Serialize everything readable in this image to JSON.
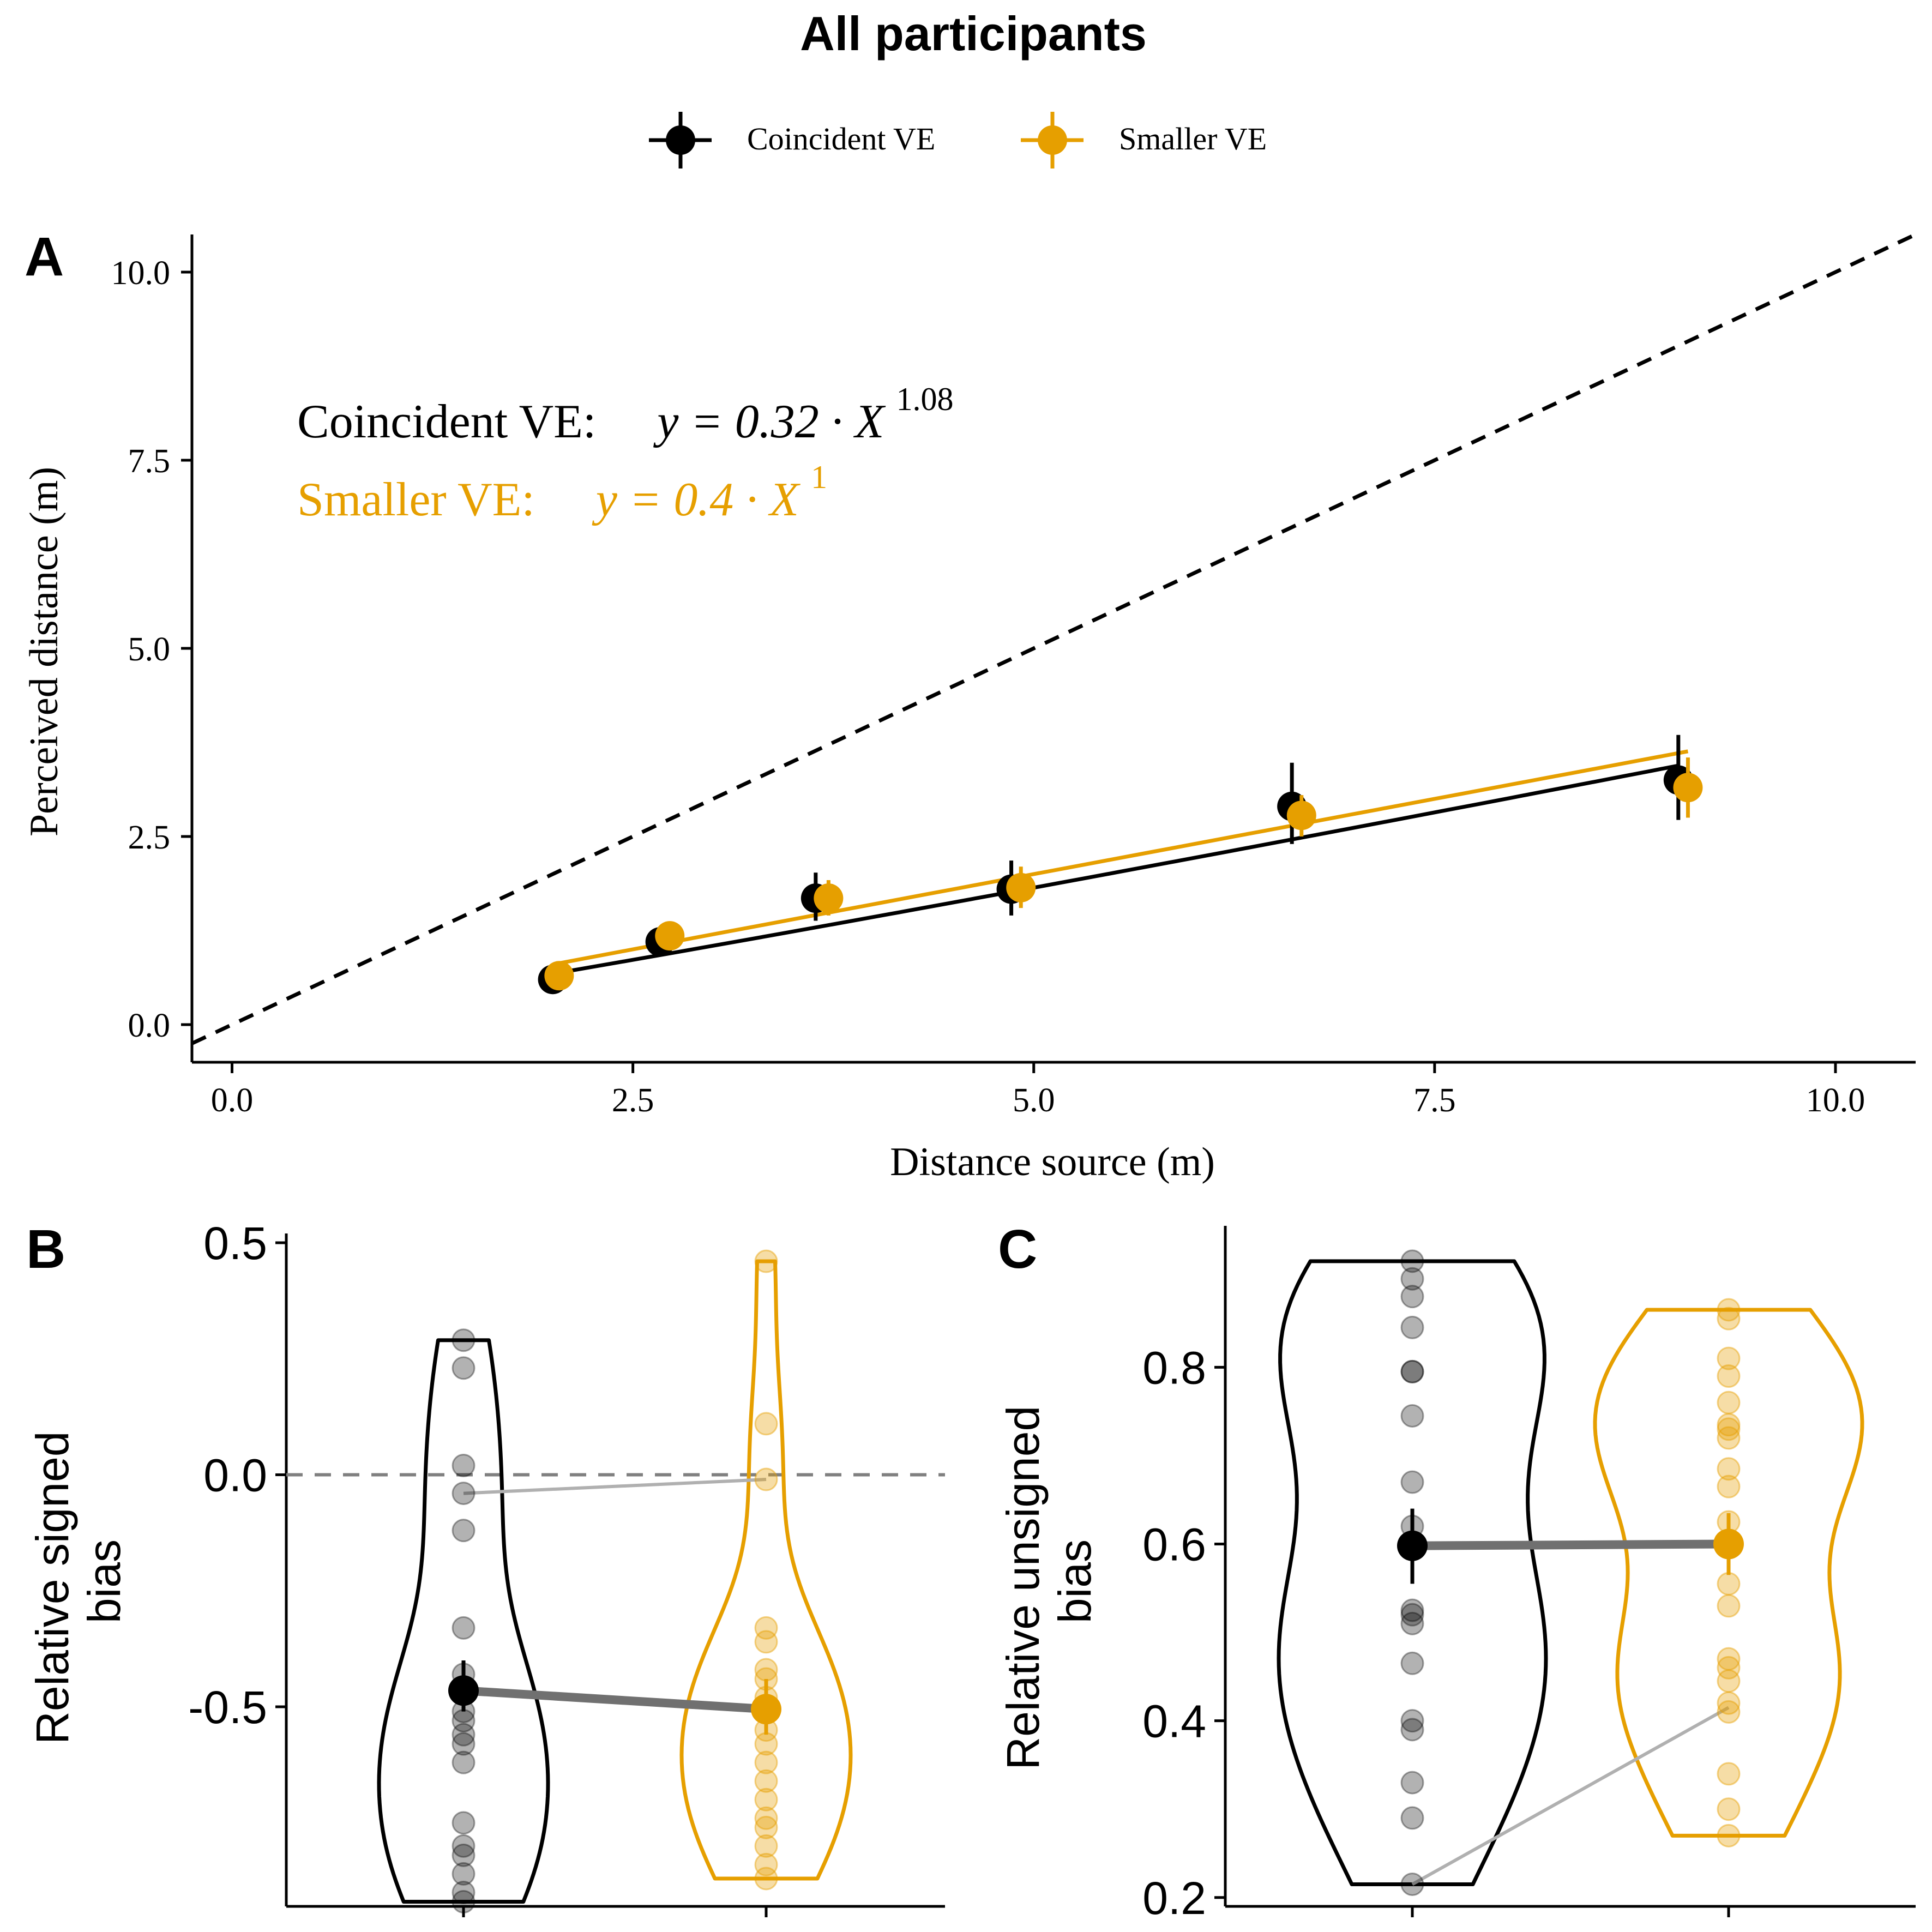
{
  "page": {
    "title": "All participants"
  },
  "legend": {
    "items": [
      {
        "label": "Coincident VE",
        "color": "#000000"
      },
      {
        "label": "Smaller VE",
        "color": "#E69F00"
      }
    ]
  },
  "colors": {
    "coincident": "#000000",
    "smaller": "#E69F00",
    "identity_line": "#000000",
    "zero_line": "#808080",
    "connector": "#707070"
  },
  "chart_data": [
    {
      "panel": "A",
      "type": "scatter",
      "xlabel": "Distance source (m)",
      "ylabel": "Perceived distance (m)",
      "xlim": [
        -0.25,
        10.5
      ],
      "ylim": [
        -0.5,
        10.5
      ],
      "xticks": [
        0.0,
        2.5,
        5.0,
        7.5,
        10.0
      ],
      "xtick_labels": [
        "0.0",
        "2.5",
        "5.0",
        "7.5",
        "10.0"
      ],
      "yticks": [
        0.0,
        2.5,
        5.0,
        7.5,
        10.0
      ],
      "ytick_labels": [
        "0.0",
        "2.5",
        "5.0",
        "7.5",
        "10.0"
      ],
      "identity_line": true,
      "annotations": [
        {
          "label": "Coincident VE:",
          "formula_base": "y = 0.32 · X",
          "exponent": "1.08",
          "color": "#000000"
        },
        {
          "label": "Smaller VE:",
          "formula_base": "y = 0.4 · X",
          "exponent": "1",
          "color": "#E69F00"
        }
      ],
      "series": [
        {
          "name": "Coincident VE",
          "x": [
            2.0,
            2.67,
            3.64,
            4.86,
            6.61,
            9.02
          ],
          "y": [
            0.6,
            1.1,
            1.68,
            1.8,
            2.9,
            3.25
          ],
          "err_low": [
            0.55,
            1.0,
            1.38,
            1.45,
            2.4,
            2.72
          ],
          "err_high": [
            0.7,
            1.2,
            2.02,
            2.18,
            3.48,
            3.85
          ],
          "fit": {
            "a": 0.32,
            "b": 1.08,
            "x_range": [
              2.0,
              9.02
            ]
          }
        },
        {
          "name": "Smaller VE",
          "x": [
            2.04,
            2.73,
            3.72,
            4.92,
            6.67,
            9.08
          ],
          "y": [
            0.65,
            1.18,
            1.68,
            1.82,
            2.78,
            3.15
          ],
          "err_low": [
            0.58,
            1.08,
            1.45,
            1.55,
            2.5,
            2.75
          ],
          "err_high": [
            0.72,
            1.28,
            1.92,
            2.1,
            3.05,
            3.55
          ],
          "fit": {
            "a": 0.4,
            "b": 1.0,
            "x_range": [
              2.04,
              9.08
            ]
          }
        }
      ]
    },
    {
      "panel": "B",
      "type": "violin",
      "ylabel": "Relative signed bias",
      "ylim": [
        -0.93,
        0.52
      ],
      "yticks": [
        -0.5,
        0.0,
        0.5
      ],
      "ytick_labels": [
        "-0.5",
        "0.0",
        "0.5"
      ],
      "zero_line": true,
      "groups": [
        {
          "name": "Coincident VE",
          "mean": -0.465,
          "ci": [
            -0.51,
            -0.4
          ],
          "violin_range": [
            -0.92,
            0.29
          ],
          "points": [
            0.29,
            0.23,
            0.02,
            -0.04,
            -0.12,
            -0.33,
            -0.43,
            -0.51,
            -0.53,
            -0.56,
            -0.58,
            -0.62,
            -0.75,
            -0.8,
            -0.82,
            -0.86,
            -0.9,
            -0.92
          ]
        },
        {
          "name": "Smaller VE",
          "mean": -0.505,
          "ci": [
            -0.56,
            -0.44
          ],
          "violin_range": [
            -0.87,
            0.46
          ],
          "points": [
            0.46,
            0.11,
            -0.01,
            -0.33,
            -0.36,
            -0.42,
            -0.44,
            -0.48,
            -0.51,
            -0.55,
            -0.58,
            -0.62,
            -0.66,
            -0.7,
            -0.74,
            -0.76,
            -0.8,
            -0.84,
            -0.87
          ]
        }
      ],
      "pair_lines": [
        {
          "from": -0.04,
          "to": -0.01
        }
      ]
    },
    {
      "panel": "C",
      "type": "violin",
      "ylabel": "Relative unsigned bias",
      "ylim": [
        0.19,
        0.96
      ],
      "yticks": [
        0.2,
        0.4,
        0.6,
        0.8
      ],
      "ytick_labels": [
        "0.2",
        "0.4",
        "0.6",
        "0.8"
      ],
      "groups": [
        {
          "name": "Coincident VE",
          "mean": 0.598,
          "ci": [
            0.555,
            0.64
          ],
          "violin_range": [
            0.215,
            0.92
          ],
          "points": [
            0.92,
            0.9,
            0.88,
            0.845,
            0.795,
            0.795,
            0.745,
            0.67,
            0.62,
            0.525,
            0.52,
            0.51,
            0.465,
            0.4,
            0.39,
            0.33,
            0.29,
            0.215
          ]
        },
        {
          "name": "Smaller VE",
          "mean": 0.6,
          "ci": [
            0.565,
            0.635
          ],
          "violin_range": [
            0.27,
            0.865
          ],
          "points": [
            0.865,
            0.855,
            0.81,
            0.79,
            0.76,
            0.735,
            0.73,
            0.72,
            0.685,
            0.665,
            0.625,
            0.555,
            0.53,
            0.47,
            0.46,
            0.445,
            0.42,
            0.41,
            0.34,
            0.3,
            0.27
          ]
        }
      ],
      "pair_lines": [
        {
          "from": 0.215,
          "to": 0.415
        }
      ]
    }
  ]
}
